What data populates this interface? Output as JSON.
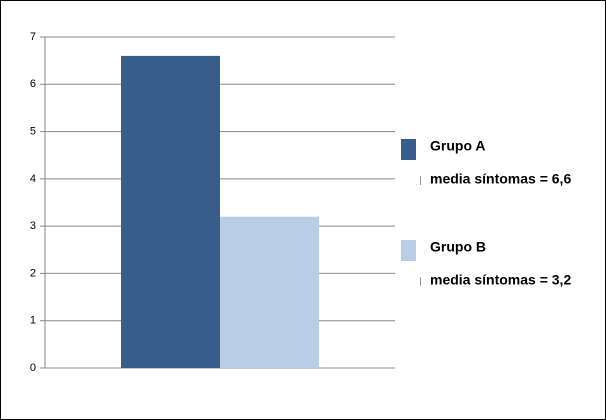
{
  "chart_data": {
    "type": "bar",
    "categories": [
      null
    ],
    "series": [
      {
        "name": "Grupo A",
        "color": "#385d8a",
        "values": [
          6.6
        ],
        "value_labels": [
          "media síntomas = 6,6"
        ]
      },
      {
        "name": "Grupo B",
        "color": "#b9cde5",
        "values": [
          3.2
        ],
        "value_labels": [
          "media síntomas = 3,2"
        ]
      }
    ],
    "ylim": [
      0,
      7
    ],
    "yticks": [
      0,
      1,
      2,
      3,
      4,
      5,
      6,
      7
    ],
    "grid": true,
    "legend": "right"
  }
}
